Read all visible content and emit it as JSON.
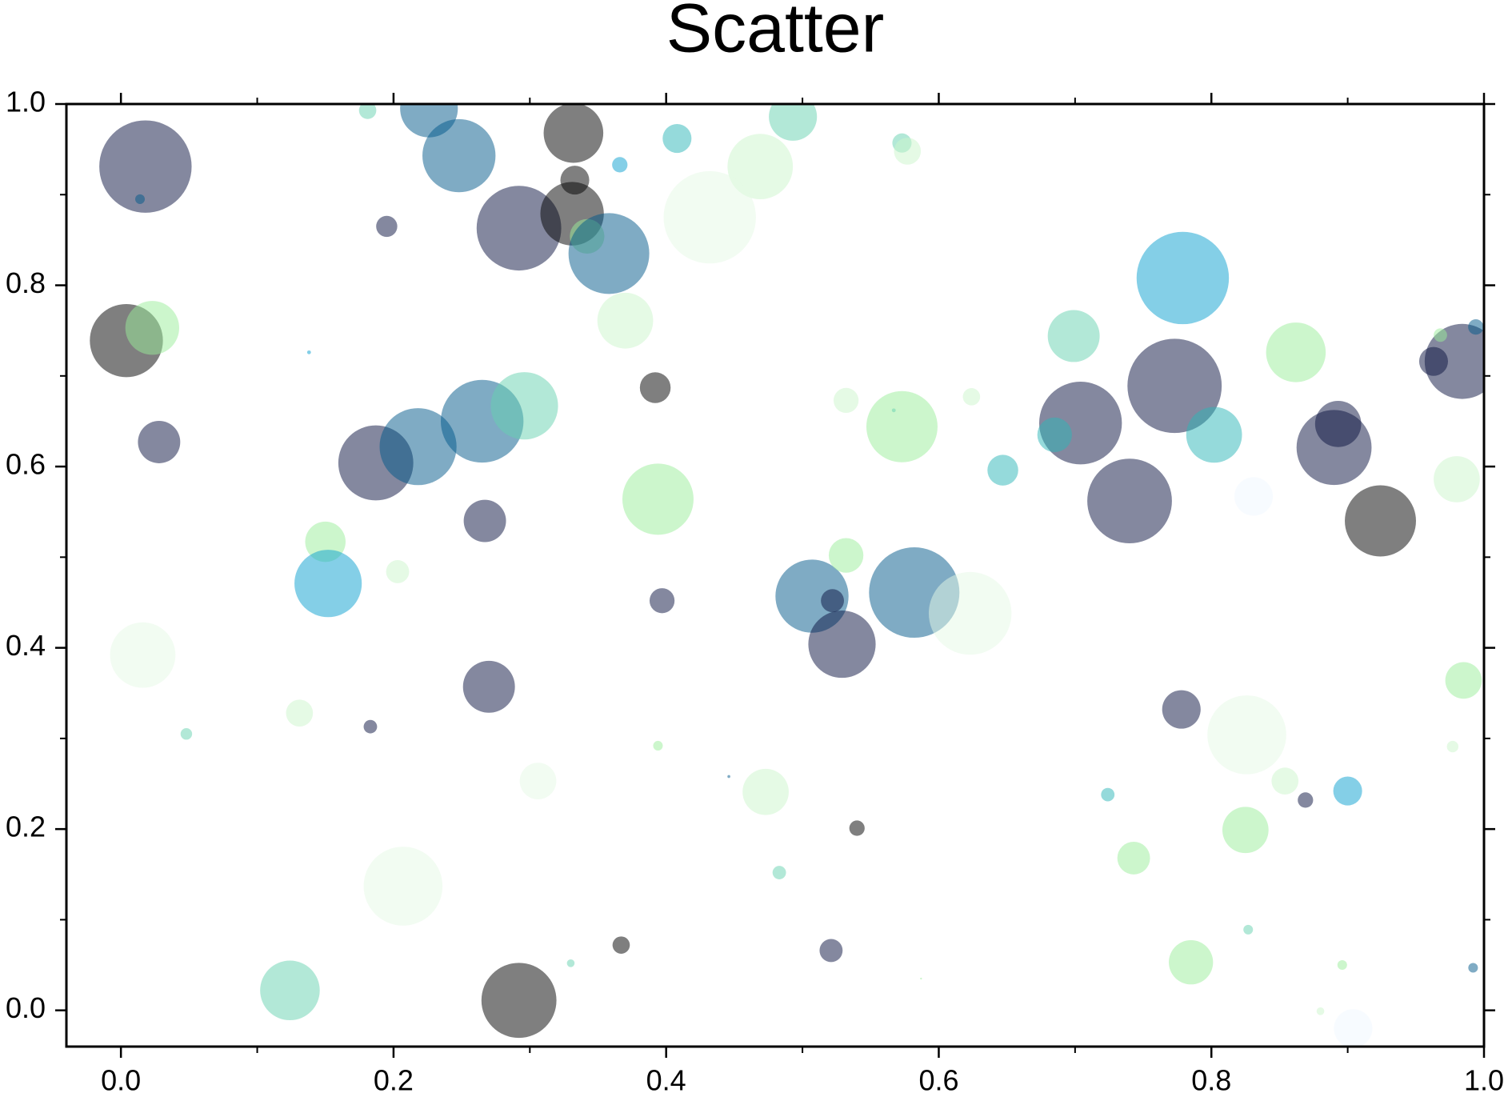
{
  "chart_data": {
    "type": "scatter",
    "title": "Scatter",
    "xlim": [
      -0.04,
      1.0
    ],
    "ylim": [
      -0.04,
      1.0
    ],
    "xticks": [
      {
        "value": 0,
        "label": "0.0"
      },
      0.2,
      0.4,
      0.6,
      0.8,
      {
        "value": 1,
        "label": "1.0"
      }
    ],
    "yticks": [
      {
        "value": 0,
        "label": "0.0"
      },
      0.2,
      0.4,
      0.6,
      0.8,
      {
        "value": 1,
        "label": "1.0"
      }
    ],
    "xminor": [
      0.1,
      0.3,
      0.5,
      0.7,
      0.9
    ],
    "yminor": [
      0.1,
      0.3,
      0.5,
      0.7,
      0.9
    ],
    "opacity": 0.5,
    "x": [
      0.018,
      0.014,
      0.004,
      0.023,
      0.028,
      0.181,
      0.226,
      0.248,
      0.195,
      0.292,
      0.332,
      0.333,
      0.331,
      0.342,
      0.358,
      0.366,
      0.408,
      0.469,
      0.432,
      0.493,
      0.573,
      0.577,
      0.37,
      0.138,
      0.187,
      0.218,
      0.265,
      0.296,
      0.267,
      0.392,
      0.15,
      0.152,
      0.203,
      0.016,
      0.048,
      0.131,
      0.183,
      0.27,
      0.394,
      0.397,
      0.394,
      0.446,
      0.306,
      0.207,
      0.124,
      0.292,
      0.33,
      0.367,
      0.473,
      0.483,
      0.507,
      0.522,
      0.529,
      0.532,
      0.582,
      0.623,
      0.573,
      0.532,
      0.567,
      0.624,
      0.54,
      0.521,
      0.587,
      0.699,
      0.704,
      0.685,
      0.647,
      0.74,
      0.779,
      0.773,
      0.802,
      0.862,
      0.893,
      0.89,
      0.924,
      0.963,
      0.984,
      0.994,
      0.968,
      0.98,
      0.985,
      0.977,
      0.831,
      0.778,
      0.826,
      0.854,
      0.869,
      0.9,
      0.724,
      0.743,
      0.825,
      0.827,
      0.785,
      0.896,
      0.88,
      0.992,
      0.904
    ],
    "series": [
      {
        "values": [
          0.931,
          0.895,
          0.739,
          0.753,
          0.627,
          0.993,
          0.995,
          0.943,
          0.865,
          0.863,
          0.968,
          0.916,
          0.879,
          0.854,
          0.835,
          0.933,
          0.962,
          0.931,
          0.875,
          0.986,
          0.957,
          0.948,
          0.761,
          0.726,
          0.604,
          0.622,
          0.65,
          0.667,
          0.54,
          0.687,
          0.517,
          0.471,
          0.484,
          0.392,
          0.305,
          0.328,
          0.313,
          0.357,
          0.564,
          0.452,
          0.292,
          0.258,
          0.253,
          0.137,
          0.022,
          0.011,
          0.052,
          0.072,
          0.241,
          0.152,
          0.457,
          0.452,
          0.404,
          0.502,
          0.461,
          0.438,
          0.644,
          0.673,
          0.662,
          0.677,
          0.201,
          0.066,
          0.035,
          0.744,
          0.648,
          0.635,
          0.596,
          0.562,
          0.808,
          0.689,
          0.635,
          0.726,
          0.647,
          0.621,
          0.54,
          0.716,
          0.716,
          0.754,
          0.745,
          0.586,
          0.364,
          0.291,
          0.567,
          0.332,
          0.304,
          0.253,
          0.232,
          0.242,
          0.238,
          0.168,
          0.199,
          0.089,
          0.053,
          0.05,
          -0.001,
          0.047,
          -0.02
        ],
        "sizes": [
          96,
          10,
          76,
          56,
          44,
          18,
          60,
          76,
          22,
          88,
          62,
          30,
          66,
          36,
          84,
          16,
          30,
          68,
          96,
          50,
          20,
          28,
          58,
          4,
          78,
          80,
          86,
          70,
          44,
          32,
          42,
          70,
          24,
          68,
          12,
          28,
          14,
          54,
          74,
          26,
          10,
          3,
          38,
          82,
          62,
          78,
          8,
          18,
          48,
          14,
          76,
          24,
          70,
          36,
          94,
          86,
          74,
          26,
          4,
          18,
          16,
          24,
          2,
          54,
          86,
          36,
          32,
          88,
          96,
          98,
          58,
          62,
          48,
          78,
          74,
          30,
          78,
          16,
          14,
          48,
          38,
          12,
          40,
          40,
          82,
          28,
          16,
          30,
          14,
          34,
          48,
          10,
          46,
          10,
          8,
          10,
          40
        ],
        "colors": [
          "#0a1240",
          "#00578a",
          "#000000",
          "#99ee99",
          "#0a1240",
          "#66d2b0",
          "#00578a",
          "#00578a",
          "#0a1240",
          "#0a1240",
          "#000000",
          "#000000",
          "#000000",
          "#99ee99",
          "#00578a",
          "#0a9fd0",
          "#2cb5b8",
          "#ccf5cc",
          "#e6fae6",
          "#66d2b0",
          "#66d2b0",
          "#ccf5cc",
          "#ccf5cc",
          "#0a9fd0",
          "#0a1240",
          "#00578a",
          "#00578a",
          "#66d2b0",
          "#0a1240",
          "#000000",
          "#99ee99",
          "#0a9fd0",
          "#ccf5cc",
          "#e6fae6",
          "#66d2b0",
          "#ccf5cc",
          "#0a1240",
          "#0a1240",
          "#99ee99",
          "#0a1240",
          "#99ee99",
          "#00578a",
          "#e6fae6",
          "#e6fae6",
          "#66d2b0",
          "#000000",
          "#66d2b0",
          "#000000",
          "#ccf5cc",
          "#66d2b0",
          "#00578a",
          "#0a1240",
          "#0a1240",
          "#99ee99",
          "#00578a",
          "#e6fae6",
          "#99ee99",
          "#ccf5cc",
          "#66d2b0",
          "#ccf5cc",
          "#000000",
          "#0a1240",
          "#99ee99",
          "#66d2b0",
          "#0a1240",
          "#2cb5b8",
          "#2cb5b8",
          "#0a1240",
          "#0a9fd0",
          "#0a1240",
          "#2cb5b8",
          "#99ee99",
          "#0a1240",
          "#0a1240",
          "#000000",
          "#0a1240",
          "#0a1240",
          "#00578a",
          "#99ee99",
          "#ccf5cc",
          "#99ee99",
          "#ccf5cc",
          "#f0f8ff",
          "#0a1240",
          "#e6fae6",
          "#ccf5cc",
          "#0a1240",
          "#0a9fd0",
          "#2cb5b8",
          "#99ee99",
          "#99ee99",
          "#66d2b0",
          "#99ee99",
          "#99ee99",
          "#ccf5cc",
          "#00578a",
          "#f0f8ff"
        ]
      }
    ]
  }
}
